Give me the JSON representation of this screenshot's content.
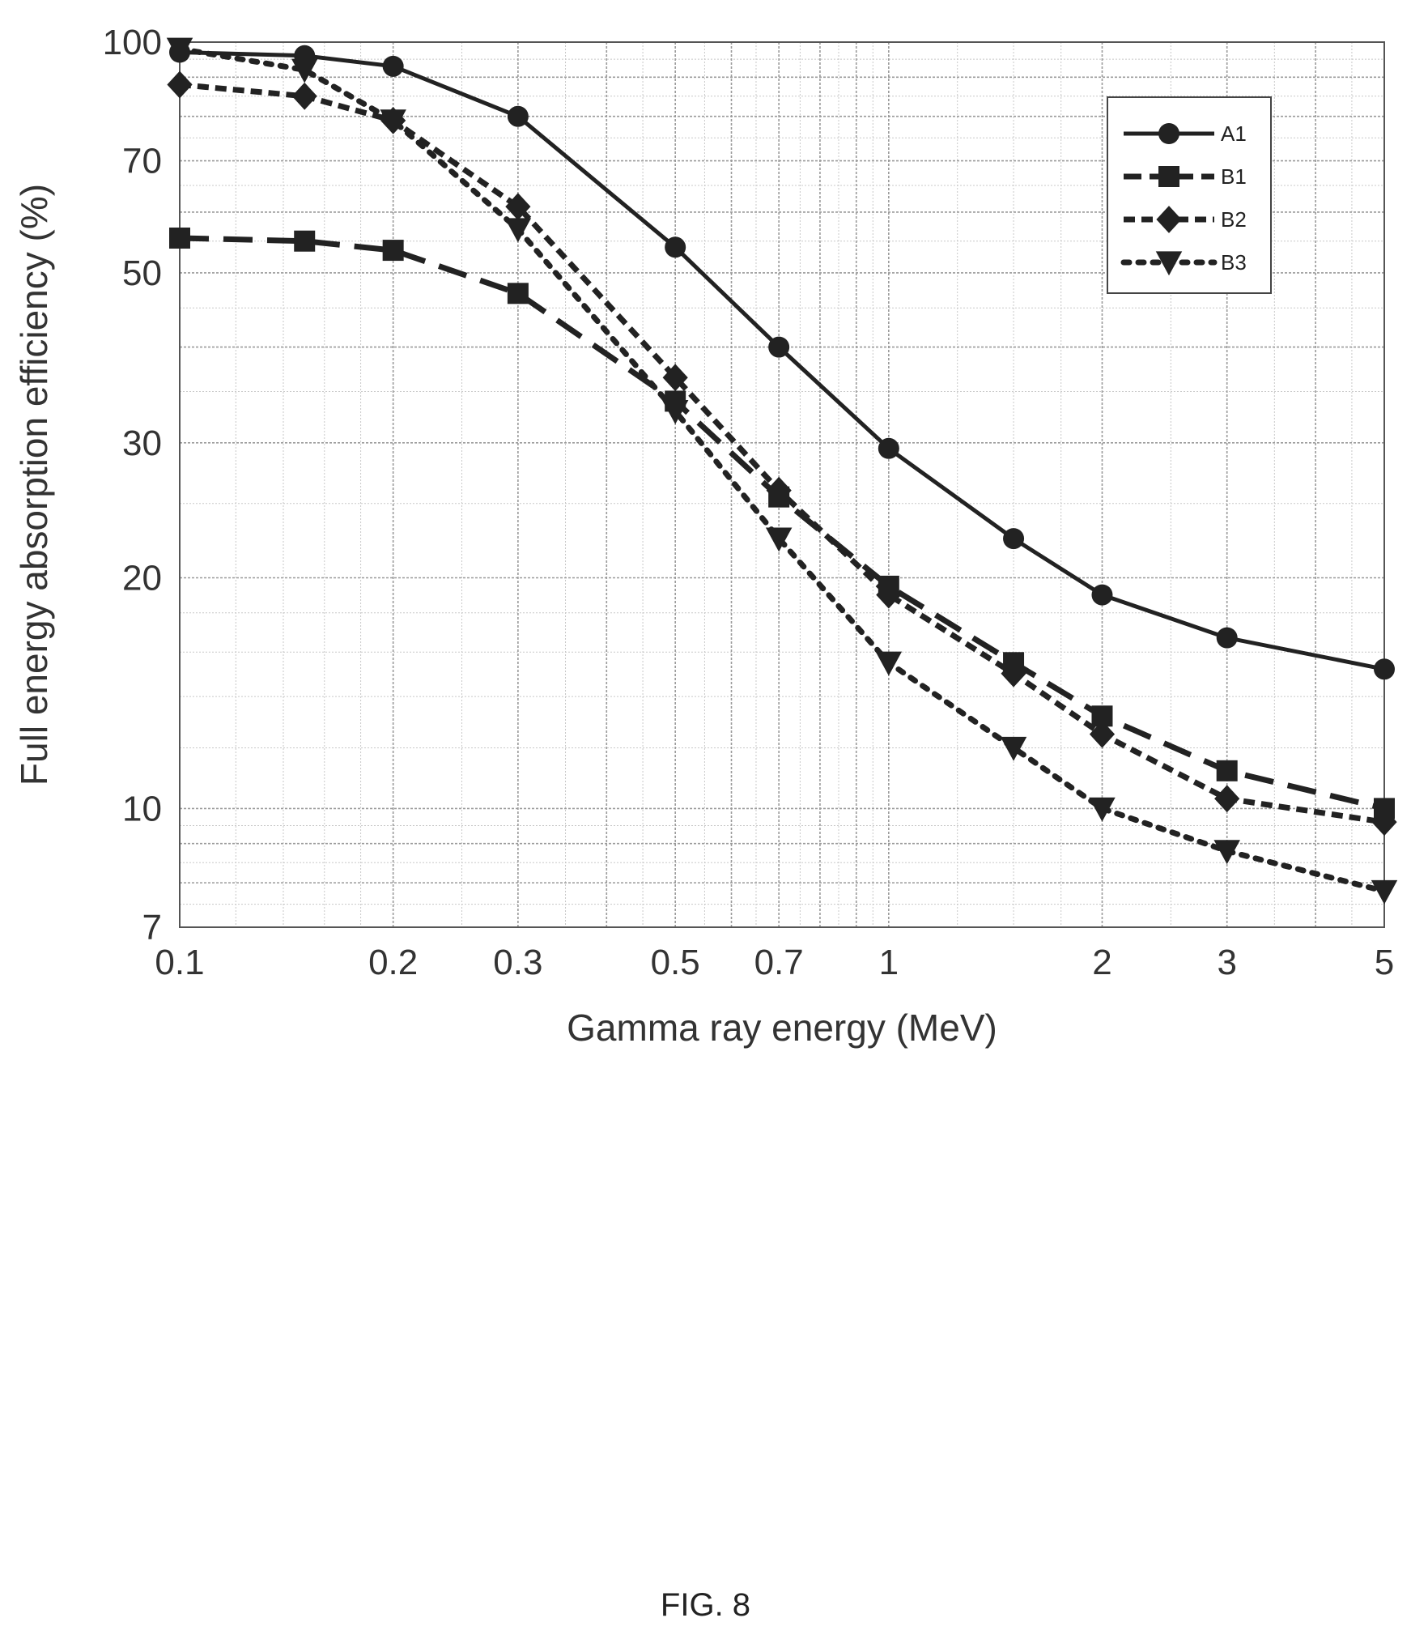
{
  "caption": "FIG. 8",
  "chart_data": {
    "type": "line",
    "title": "",
    "xlabel": "Gamma ray energy (MeV)",
    "ylabel": "Full energy absorption efficiency (%)",
    "x_scale": "log",
    "y_scale": "log",
    "xlim": [
      0.1,
      5
    ],
    "ylim": [
      7,
      100
    ],
    "grid": true,
    "legend_position": "top-right",
    "x_ticks": [
      {
        "value": 0.1,
        "label": "0.1"
      },
      {
        "value": 0.2,
        "label": "0.2"
      },
      {
        "value": 0.3,
        "label": "0.3"
      },
      {
        "value": 0.5,
        "label": "0.5"
      },
      {
        "value": 0.7,
        "label": "0.7"
      },
      {
        "value": 1,
        "label": "1"
      },
      {
        "value": 2,
        "label": "2"
      },
      {
        "value": 3,
        "label": "3"
      },
      {
        "value": 5,
        "label": "5"
      }
    ],
    "y_ticks": [
      {
        "value": 7,
        "label": "7"
      },
      {
        "value": 10,
        "label": "10"
      },
      {
        "value": 20,
        "label": "20"
      },
      {
        "value": 30,
        "label": "30"
      },
      {
        "value": 50,
        "label": "50"
      },
      {
        "value": 70,
        "label": "70"
      },
      {
        "value": 100,
        "label": "100"
      }
    ],
    "x_minor_grid": [
      0.4,
      0.6,
      0.8,
      0.9,
      4
    ],
    "y_minor_grid": [
      8,
      9,
      40,
      60,
      80,
      90
    ],
    "series": [
      {
        "name": "A1",
        "marker": "circle",
        "dash": "solid",
        "color": "#222222",
        "points": [
          [
            0.1,
            97
          ],
          [
            0.15,
            96
          ],
          [
            0.2,
            93
          ],
          [
            0.3,
            80
          ],
          [
            0.5,
            54
          ],
          [
            0.7,
            40
          ],
          [
            1,
            29.5
          ],
          [
            1.5,
            22.5
          ],
          [
            2,
            19
          ],
          [
            3,
            16.7
          ],
          [
            5,
            15.2
          ]
        ]
      },
      {
        "name": "B1",
        "marker": "square",
        "dash": "dash",
        "color": "#222222",
        "points": [
          [
            0.1,
            55.5
          ],
          [
            0.15,
            55
          ],
          [
            0.2,
            53.5
          ],
          [
            0.3,
            47
          ],
          [
            0.5,
            34
          ],
          [
            0.7,
            25.5
          ],
          [
            1,
            19.5
          ],
          [
            1.5,
            15.5
          ],
          [
            2,
            13.2
          ],
          [
            3,
            11.2
          ],
          [
            5,
            10
          ]
        ]
      },
      {
        "name": "B2",
        "marker": "diamond",
        "dash": "shortdash",
        "color": "#222222",
        "points": [
          [
            0.1,
            88
          ],
          [
            0.15,
            85
          ],
          [
            0.2,
            79
          ],
          [
            0.3,
            61
          ],
          [
            0.5,
            36.5
          ],
          [
            0.7,
            26
          ],
          [
            1,
            19
          ],
          [
            1.5,
            15
          ],
          [
            2,
            12.5
          ],
          [
            3,
            10.3
          ],
          [
            5,
            9.6
          ]
        ]
      },
      {
        "name": "B3",
        "marker": "triangle-down",
        "dash": "dot",
        "color": "#222222",
        "points": [
          [
            0.1,
            98
          ],
          [
            0.15,
            92
          ],
          [
            0.2,
            79
          ],
          [
            0.3,
            57
          ],
          [
            0.5,
            33
          ],
          [
            0.7,
            22.5
          ],
          [
            1,
            15.5
          ],
          [
            1.5,
            12
          ],
          [
            2,
            10
          ],
          [
            3,
            8.8
          ],
          [
            5,
            7.8
          ]
        ]
      }
    ]
  }
}
